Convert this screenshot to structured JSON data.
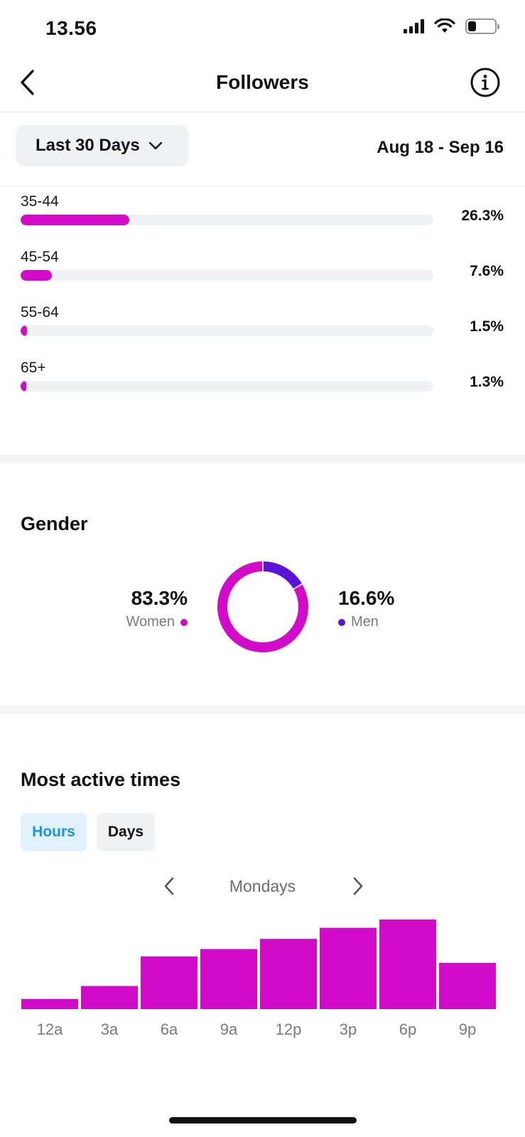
{
  "status_bar": {
    "time": "13.56",
    "battery_level": 0.3,
    "icons": [
      "signal-icon",
      "wifi-icon",
      "battery-icon"
    ]
  },
  "nav": {
    "title": "Followers",
    "back_icon": "chevron-left-icon",
    "info_icon": "info-icon"
  },
  "filter": {
    "range_label": "Last 30 Days",
    "date_range": "Aug 18 - Sep 16"
  },
  "age_groups": [
    {
      "label": "35-44",
      "value": "26.3%",
      "fraction": 0.263
    },
    {
      "label": "45-54",
      "value": "7.6%",
      "fraction": 0.076
    },
    {
      "label": "55-64",
      "value": "1.5%",
      "fraction": 0.015
    },
    {
      "label": "65+",
      "value": "1.3%",
      "fraction": 0.013
    }
  ],
  "gender": {
    "title": "Gender",
    "women_pct": "83.3%",
    "women_label": "Women",
    "men_pct": "16.6%",
    "men_label": "Men",
    "women_color": "#d10bc7",
    "men_color": "#5b13d6",
    "women_value": 83.3,
    "men_value": 16.6
  },
  "active_times": {
    "title": "Most active times",
    "tabs": [
      "Hours",
      "Days"
    ],
    "selected_tab": "Hours",
    "day": "Mondays",
    "prev_icon": "chevron-left-icon",
    "next_icon": "chevron-right-icon"
  },
  "chart_data": {
    "type": "bar",
    "categories": [
      "12a",
      "3a",
      "6a",
      "9a",
      "12p",
      "3p",
      "6p",
      "9p"
    ],
    "values": [
      11,
      25,
      57,
      65,
      76,
      88,
      97,
      50
    ],
    "ylim": [
      0,
      100
    ],
    "color": "#d10bc7",
    "grid": false
  }
}
